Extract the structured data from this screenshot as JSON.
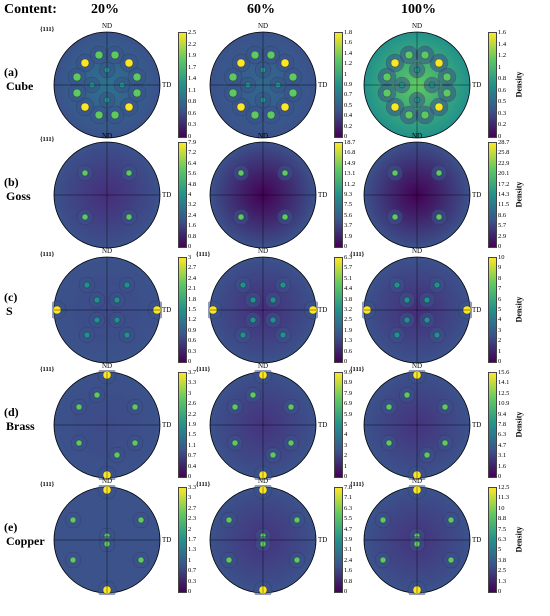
{
  "figure": {
    "content_label": "Content:",
    "columns": [
      "20%",
      "60%",
      "100%"
    ],
    "axis_nd": "ND",
    "axis_td": "TD",
    "pole_label": "{111}",
    "density_label": "Density",
    "colormap": [
      "#440154",
      "#3b528b",
      "#21918c",
      "#5ec962",
      "#fde725"
    ],
    "rows": [
      {
        "letter": "(a)",
        "name": "Cube",
        "panels": [
          {
            "pole": "{111}",
            "ticks": [
              "2.5",
              "2.2",
              "1.9",
              "1.7",
              "1.4",
              "1.1",
              "0.8",
              "0.6",
              "0.3",
              "0"
            ]
          },
          {
            "pole": "",
            "ticks": [
              "1.8",
              "1.6",
              "1.4",
              "1.2",
              "1",
              "0.9",
              "0.7",
              "0.5",
              "0.4",
              "0.2",
              "0"
            ]
          },
          {
            "pole": "",
            "ticks": [
              "1.6",
              "1.4",
              "1.2",
              "1",
              "0.8",
              "0.6",
              "0.5",
              "0.3",
              "0.2",
              "0"
            ]
          }
        ]
      },
      {
        "letter": "(b)",
        "name": "Goss",
        "panels": [
          {
            "pole": "{111}",
            "ticks": [
              "7.9",
              "7.2",
              "6.4",
              "5.6",
              "4.8",
              "4",
              "3.2",
              "2.4",
              "1.6",
              "0.8",
              "0"
            ]
          },
          {
            "pole": "",
            "ticks": [
              "18.7",
              "16.8",
              "14.9",
              "13.1",
              "11.2",
              "9.3",
              "7.5",
              "5.6",
              "3.7",
              "1.9",
              "0"
            ]
          },
          {
            "pole": "",
            "ticks": [
              "28.7",
              "25.8",
              "22.9",
              "20.1",
              "17.2",
              "14.3",
              "11.5",
              "8.6",
              "5.7",
              "2.9",
              "0"
            ]
          }
        ]
      },
      {
        "letter": "(c)",
        "name": "S",
        "panels": [
          {
            "pole": "{111}",
            "ticks": [
              "3",
              "2.7",
              "2.4",
              "2.1",
              "1.8",
              "1.5",
              "1.2",
              "0.9",
              "0.6",
              "0.3",
              "0"
            ]
          },
          {
            "pole": "{111}",
            "ticks": [
              "6.3",
              "5.7",
              "5.1",
              "4.4",
              "3.8",
              "3.2",
              "2.5",
              "1.9",
              "1.3",
              "0.6",
              "0"
            ]
          },
          {
            "pole": "{111}",
            "ticks": [
              "10",
              "9",
              "8",
              "7",
              "6",
              "5",
              "4",
              "3",
              "2",
              "1",
              "0"
            ]
          }
        ]
      },
      {
        "letter": "(d)",
        "name": "Brass",
        "panels": [
          {
            "pole": "{111}",
            "ticks": [
              "3.7",
              "3.3",
              "3",
              "2.6",
              "2.2",
              "1.9",
              "1.5",
              "1.1",
              "0.7",
              "0.4",
              "0"
            ]
          },
          {
            "pole": "{111}",
            "ticks": [
              "9.9",
              "8.9",
              "7.9",
              "6.9",
              "5.9",
              "5",
              "4",
              "3",
              "2",
              "1",
              "0"
            ]
          },
          {
            "pole": "{111}",
            "ticks": [
              "15.6",
              "14.1",
              "12.5",
              "10.9",
              "9.4",
              "7.8",
              "6.3",
              "4.7",
              "3.1",
              "1.6",
              "0"
            ]
          }
        ]
      },
      {
        "letter": "(e)",
        "name": "Copper",
        "panels": [
          {
            "pole": "{111}",
            "ticks": [
              "3.3",
              "3",
              "2.7",
              "2.3",
              "2",
              "1.7",
              "1.3",
              "1",
              "0.7",
              "0.3",
              "0"
            ]
          },
          {
            "pole": "{111}",
            "ticks": [
              "7.8",
              "7.1",
              "6.3",
              "5.5",
              "4.7",
              "3.9",
              "3.1",
              "2.4",
              "1.6",
              "0.8",
              "0"
            ]
          },
          {
            "pole": "{111}",
            "ticks": [
              "12.5",
              "11.3",
              "10",
              "8.8",
              "7.5",
              "6.3",
              "5",
              "3.8",
              "2.5",
              "1.3",
              "0"
            ]
          }
        ]
      }
    ]
  }
}
